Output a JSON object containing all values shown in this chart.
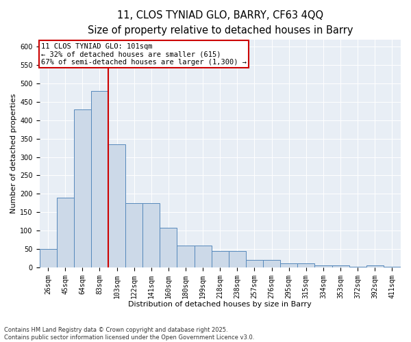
{
  "title_line1": "11, CLOS TYNIAD GLO, BARRY, CF63 4QQ",
  "title_line2": "Size of property relative to detached houses in Barry",
  "xlabel": "Distribution of detached houses by size in Barry",
  "ylabel": "Number of detached properties",
  "annotation_title": "11 CLOS TYNIAD GLO: 101sqm",
  "annotation_line2": "← 32% of detached houses are smaller (615)",
  "annotation_line3": "67% of semi-detached houses are larger (1,300) →",
  "bar_labels": [
    "26sqm",
    "45sqm",
    "64sqm",
    "83sqm",
    "103sqm",
    "122sqm",
    "141sqm",
    "160sqm",
    "180sqm",
    "199sqm",
    "218sqm",
    "238sqm",
    "257sqm",
    "276sqm",
    "295sqm",
    "315sqm",
    "334sqm",
    "353sqm",
    "372sqm",
    "392sqm",
    "411sqm"
  ],
  "bar_values": [
    50,
    190,
    430,
    480,
    335,
    175,
    175,
    108,
    60,
    60,
    44,
    44,
    20,
    20,
    10,
    10,
    6,
    6,
    2,
    5,
    2
  ],
  "bar_color": "#ccd9e8",
  "bar_edge_color": "#5588bb",
  "vline_color": "#cc0000",
  "annotation_box_color": "#cc0000",
  "ylim": [
    0,
    620
  ],
  "yticks": [
    0,
    50,
    100,
    150,
    200,
    250,
    300,
    350,
    400,
    450,
    500,
    550,
    600
  ],
  "background_color": "#e8eef5",
  "footer": "Contains HM Land Registry data © Crown copyright and database right 2025.\nContains public sector information licensed under the Open Government Licence v3.0.",
  "title_fontsize": 10.5,
  "subtitle_fontsize": 9.5,
  "axis_label_fontsize": 8,
  "tick_fontsize": 7,
  "annotation_fontsize": 7.5
}
